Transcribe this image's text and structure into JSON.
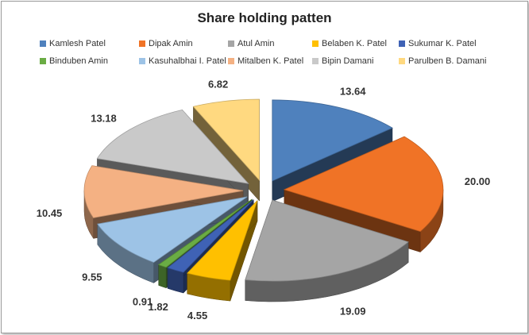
{
  "chart_data": {
    "type": "pie",
    "title": "Share holding patten",
    "legend_position": "top",
    "categories": [
      "Kamlesh Patel",
      "Dipak Amin",
      "Atul Amin",
      "Belaben K. Patel",
      "Sukumar K. Patel",
      "Binduben Amin",
      "Kasuhalbhai I. Patel",
      "Mitalben K. Patel",
      "Bipin Damani",
      "Parulben B. Damani"
    ],
    "values": [
      13.64,
      20.0,
      19.09,
      4.55,
      1.82,
      0.91,
      9.55,
      10.45,
      13.18,
      6.82
    ],
    "value_labels": [
      "13.64",
      "20.00",
      "19.09",
      "4.55",
      "1.82",
      "0.91",
      "9.55",
      "10.45",
      "13.18",
      "6.82"
    ],
    "colors": [
      "#4F81BD",
      "#F07326",
      "#A5A5A5",
      "#FFC000",
      "#3F62B5",
      "#6AAC44",
      "#9DC3E6",
      "#F4B183",
      "#C9C9C9",
      "#FFD980"
    ]
  }
}
